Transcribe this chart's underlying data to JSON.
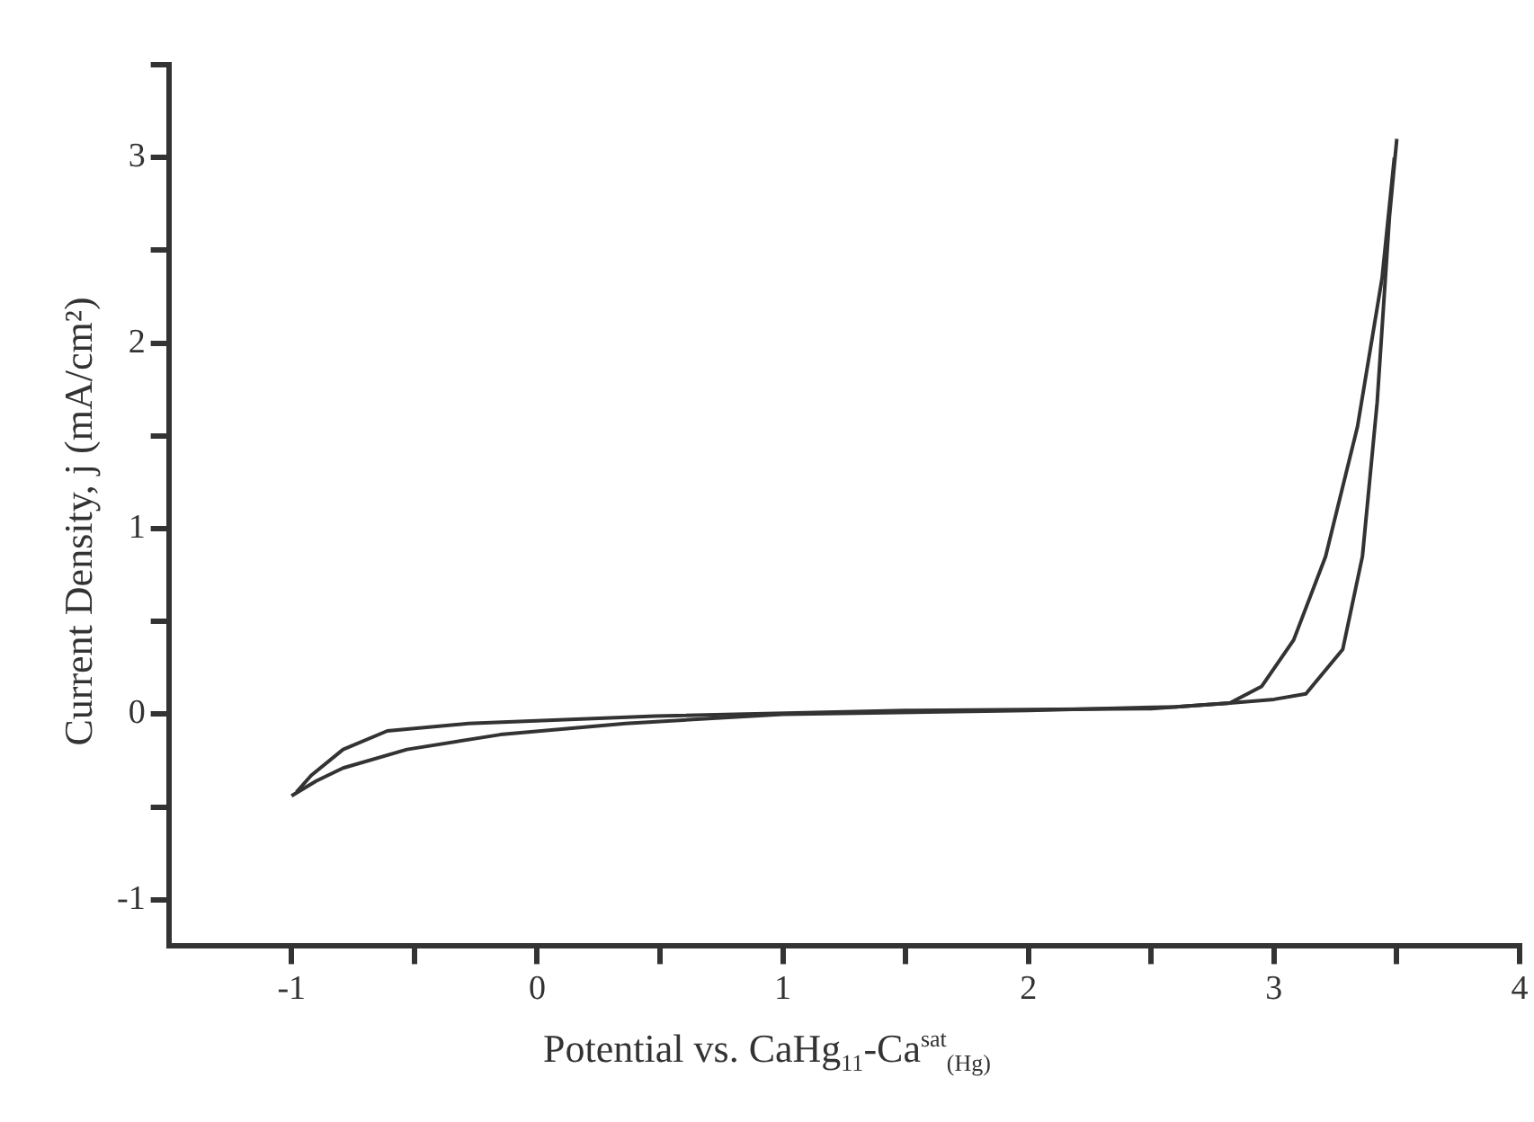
{
  "chart_data": {
    "type": "line",
    "xlabel": "Potential vs. CaHg$_{11}$-Ca$^{sat}$$_{(Hg)}$",
    "ylabel": "Current Density, j  (mA/cm²)",
    "xlim": [
      -1.5,
      4
    ],
    "ylim": [
      -1.25,
      3.5
    ],
    "xticks": [
      -1,
      {
        "value": -0.5,
        "label": null
      },
      0,
      {
        "value": 0.5,
        "label": null
      },
      1,
      {
        "value": 1.5,
        "label": null
      },
      2,
      {
        "value": 2.5,
        "label": null
      },
      3,
      {
        "value": 3.5,
        "label": null
      },
      4
    ],
    "yticks": [
      -1,
      {
        "value": -0.5,
        "label": null
      },
      0,
      {
        "value": 0.5,
        "label": null
      },
      1,
      {
        "value": 1.5,
        "label": null
      },
      2,
      {
        "value": 2.5,
        "label": null
      },
      3,
      {
        "value": 3.5,
        "label": null
      }
    ],
    "grid": false,
    "legend": false,
    "marker": "none",
    "line_style": "solid",
    "series": [
      {
        "color": "#333333",
        "x": [
          -1,
          -0.9,
          -0.79,
          -0.53,
          -0.15,
          0.36,
          1.0,
          2.0,
          2.6,
          2.82,
          3.0,
          3.13,
          3.28,
          3.36,
          3.42,
          3.47,
          3.5
        ],
        "values": [
          -0.44,
          -0.36,
          -0.29,
          -0.19,
          -0.11,
          -0.05,
          0,
          0.02,
          0.04,
          0.06,
          0.08,
          0.11,
          0.35,
          0.85,
          1.68,
          2.68,
          3.1
        ]
      },
      {
        "color": "#333333",
        "x": [
          -0.98,
          -0.92,
          -0.79,
          -0.61,
          -0.28,
          0.48,
          1.5,
          2.5,
          2.82,
          2.95,
          3.08,
          3.21,
          3.34,
          3.44,
          3.49
        ],
        "values": [
          -0.42,
          -0.33,
          -0.19,
          -0.09,
          -0.05,
          -0.01,
          0.02,
          0.03,
          0.06,
          0.15,
          0.4,
          0.85,
          1.55,
          2.35,
          3.0
        ]
      }
    ]
  }
}
